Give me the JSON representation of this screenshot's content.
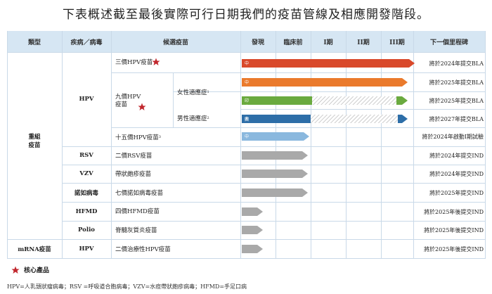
{
  "title": "下表概述截至最後實際可行日期我們的疫苗管線及相應開發階段。",
  "headers": {
    "type": "類型",
    "disease": "疾病／病毒",
    "candidate": "候選疫苗",
    "discovery": "發現",
    "preclinical": "臨床前",
    "phase1": "I期",
    "phase2": "II期",
    "phase3": "III期",
    "milestone": "下一個里程碑"
  },
  "groups": {
    "recombinant": "重組\n疫苗",
    "mrna": "mRNA疫苗"
  },
  "diseases": {
    "hpv": "HPV",
    "rsv": "RSV",
    "vzv": "VZV",
    "noro": "諾如病毒",
    "hfmd": "HFMD",
    "polio": "Polio",
    "hpv2": "HPV"
  },
  "candidates": {
    "hpv3": "三價HPV疫苗",
    "hpv9": "九價HPV\n疫苗",
    "hpv9_female": "女性適應症",
    "hpv9_female_sup": "1",
    "hpv9_male": "男性適應症",
    "hpv9_male_sup": "2",
    "hpv15": "十五價HPV疫苗",
    "hpv15_sup": "3",
    "rsv": "二價RSV疫苗",
    "vzv": "帶狀皰疹疫苗",
    "noro": "七價諾如病毒疫苗",
    "hfmd": "四價HFMD疫苗",
    "polio": "脊髓灰質炎疫苗",
    "mrna_hpv": "二價治療性HPV疫苗"
  },
  "bar_labels": {
    "china": "中國",
    "china2": "中國",
    "indonesia": "印度尼西亞",
    "china3": "中國",
    "china4": "中國"
  },
  "milestones": {
    "hpv3": "將於2024年提交BLA",
    "hpv9_female_cn": "將於2025年提交BLA",
    "hpv9_female_id": "將於2025年提交BLA",
    "hpv9_male": "將於2027年提交BLA",
    "hpv15": "將於2024年啟動I期試驗",
    "rsv": "將於2024年提交IND",
    "vzv": "將於2024年提交IND",
    "noro": "將於2025年提交IND",
    "hfmd": "將於2025年後提交IND",
    "polio": "將於2025年後提交IND",
    "mrna_hpv": "將於2025年後提交IND"
  },
  "legend": "核心產品",
  "footnote": "HPV=人乳頭狀瘤病毒；RSV =呼吸道合胞病毒；VZV=水痘帶狀皰疹病毒；HFMD=手足口病",
  "colors": {
    "header_bg": "#d6e6f3",
    "red_bar": "#d9492b",
    "orange_bar": "#ea7a2c",
    "green_bar": "#6aaa3f",
    "blue_bar": "#2d6ea8",
    "light_blue_bar": "#8ab8de",
    "gray_bar": "#a9a9a9",
    "star": "#c1272d"
  }
}
